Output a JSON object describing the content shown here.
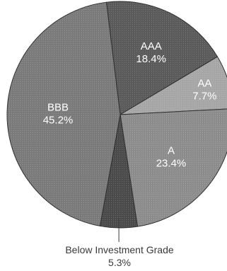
{
  "chart_data": {
    "type": "pie",
    "slices": [
      {
        "name": "AAA",
        "value": 18.4,
        "value_label": "18.4%",
        "color": "#5a5a5a"
      },
      {
        "name": "AA",
        "value": 7.7,
        "value_label": "7.7%",
        "color": "#a6a6a6"
      },
      {
        "name": "A",
        "value": 23.4,
        "value_label": "23.4%",
        "color": "#8c8c8c"
      },
      {
        "name": "Below Investment Grade",
        "value": 5.3,
        "value_label": "5.3%",
        "color": "#4a4a4a"
      },
      {
        "name": "BBB",
        "value": 45.2,
        "value_label": "45.2%",
        "color": "#7a7a7a"
      }
    ]
  }
}
